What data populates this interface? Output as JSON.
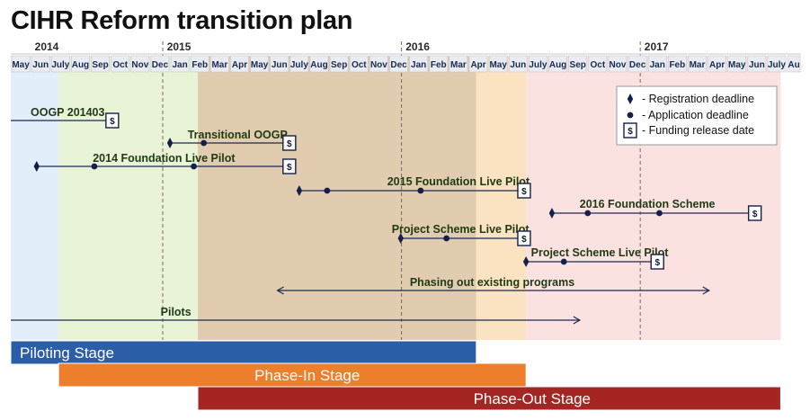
{
  "title": "CIHR Reform transition plan",
  "chart_data": {
    "type": "timeline",
    "years": [
      {
        "label": "2014",
        "month_index": 0
      },
      {
        "label": "2015",
        "month_index": 8
      },
      {
        "label": "2016",
        "month_index": 20
      },
      {
        "label": "2017",
        "month_index": 32
      }
    ],
    "months": [
      "May",
      "Jun",
      "July",
      "Aug",
      "Sep",
      "Oct",
      "Nov",
      "Dec",
      "Jan",
      "Feb",
      "Mar",
      "Apr",
      "May",
      "Jun",
      "July",
      "Aug",
      "Sep",
      "Oct",
      "Nov",
      "Dec",
      "Jan",
      "Feb",
      "Mar",
      "Apr",
      "May",
      "Jun",
      "July",
      "Aug",
      "Sep",
      "Oct",
      "Nov",
      "Dec",
      "Jan",
      "Feb",
      "Mar",
      "Apr",
      "May",
      "Jun",
      "July",
      "Au"
    ],
    "legend": [
      {
        "symbol": "diamond",
        "label": "- Registration deadline"
      },
      {
        "symbol": "dot",
        "label": "- Application deadline"
      },
      {
        "symbol": "dollar",
        "label": "- Funding release date"
      }
    ],
    "legend_position": "top-right",
    "fund_symbol": "$",
    "events": [
      {
        "label": "OOGP 201403",
        "line_start": -1,
        "funding": 5.1,
        "registration": null,
        "application": null
      },
      {
        "label": "Transitional OOGP",
        "line_start": 8.0,
        "registration": 8.0,
        "application": 9.7,
        "funding": 14.0
      },
      {
        "label": "2014 Foundation Live Pilot",
        "line_start": 1.3,
        "registration": 1.3,
        "application": [
          4.2,
          9.2
        ],
        "funding": 14.0
      },
      {
        "label": "2015 Foundation Live Pilot",
        "line_start": 14.5,
        "registration": 14.5,
        "application": [
          15.9,
          20.6
        ],
        "funding": 25.8
      },
      {
        "label": "2016 Foundation Scheme",
        "line_start": 27.2,
        "registration": 27.2,
        "application": [
          29.0,
          32.6
        ],
        "funding": 37.4
      },
      {
        "label": "Project Scheme Live Pilot",
        "line_start": 19.6,
        "registration": 19.6,
        "application": 21.9,
        "funding": 25.8
      },
      {
        "label": "Project Scheme Live Pilot",
        "line_start": 25.9,
        "registration": 25.9,
        "application": 27.8,
        "funding": 32.5
      }
    ],
    "spans": [
      {
        "label": "Phasing out existing programs",
        "start": 13.4,
        "end": 35.1,
        "arrows": "both"
      },
      {
        "label": "Pilots",
        "start": -1,
        "end": 28.6,
        "arrows": "end"
      }
    ],
    "stages": [
      {
        "label": "Piloting Stage",
        "start": -1,
        "end": 23.4,
        "color": "#2b5ea6"
      },
      {
        "label": "Phase-In Stage",
        "start": 2.4,
        "end": 25.9,
        "color": "#ec7e2c"
      },
      {
        "label": "Phase-Out Stage",
        "start": 9.4,
        "end": 38.7,
        "color": "#a52522"
      }
    ],
    "background_bands": [
      {
        "start": -1,
        "end": 2.4,
        "color": "#e2eefa"
      },
      {
        "start": 2.4,
        "end": 9.4,
        "color": "#e9f3d6"
      },
      {
        "start": 9.4,
        "end": 23.4,
        "color": "#e1ccb0"
      },
      {
        "start": 23.4,
        "end": 25.9,
        "color": "#fbe3c1"
      },
      {
        "start": 25.9,
        "end": 38.7,
        "color": "#fbe2e0"
      }
    ],
    "colors": {
      "line": "#1a2a55",
      "marker": "#14204a",
      "label": "#1f3a15"
    }
  }
}
